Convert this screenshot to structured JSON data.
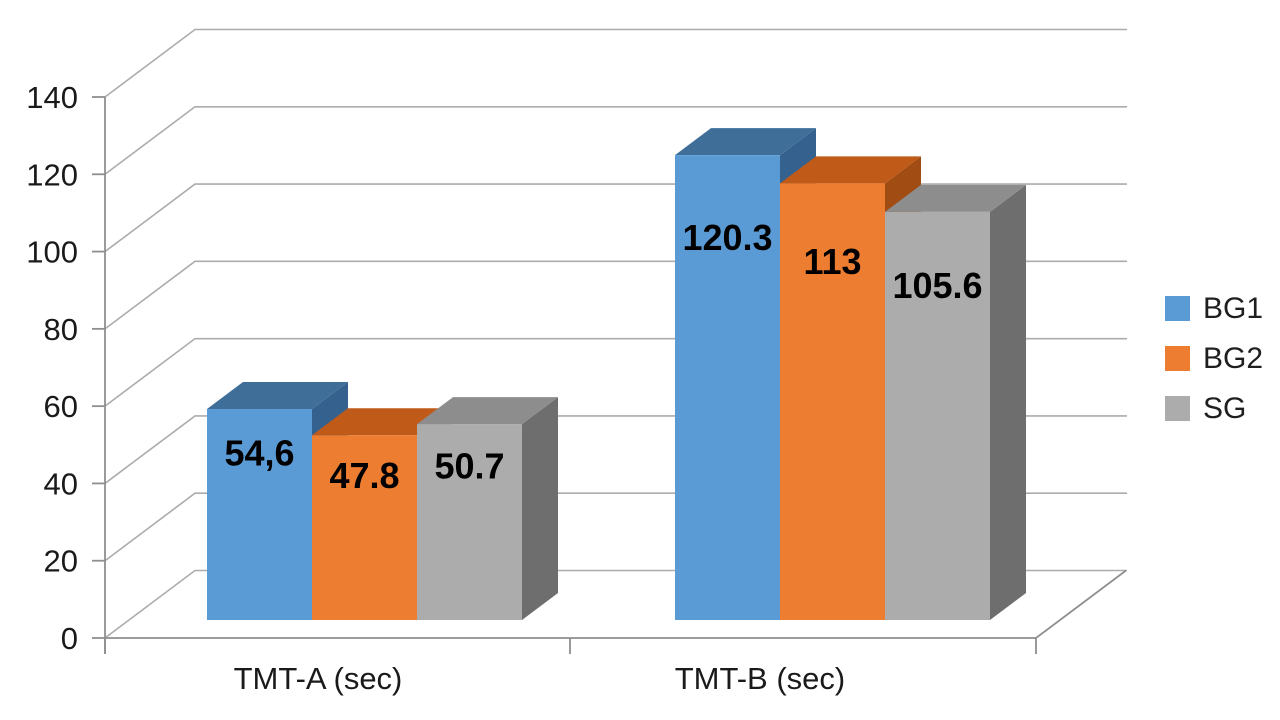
{
  "chart_data": {
    "type": "bar",
    "style": "3d-clustered-column",
    "title": "",
    "xlabel": "",
    "ylabel": "",
    "categories": [
      "TMT-A (sec)",
      "TMT-B (sec)"
    ],
    "series": [
      {
        "name": "BG1",
        "values": [
          54.6,
          120.3
        ],
        "value_labels": [
          "54,6",
          "120.3"
        ],
        "color": "#5B9BD5",
        "color_top": "#3F6E99",
        "color_side": "#35618F"
      },
      {
        "name": "BG2",
        "values": [
          47.8,
          113
        ],
        "value_labels": [
          "47.8",
          "113"
        ],
        "color": "#ED7D31",
        "color_top": "#C05A18",
        "color_side": "#A04C12"
      },
      {
        "name": "SG",
        "values": [
          50.7,
          105.6
        ],
        "value_labels": [
          "50.7",
          "105.6"
        ],
        "color": "#ACACAC",
        "color_top": "#8D8D8D",
        "color_side": "#6E6E6E"
      }
    ],
    "ylim": [
      0,
      140
    ],
    "yticks": [
      0,
      20,
      40,
      60,
      80,
      100,
      120,
      140
    ],
    "grid": true,
    "legend_position": "right"
  },
  "colors": {
    "background": "#FFFFFF",
    "gridline": "#ACACAC",
    "axis_line": "#8F8F8F",
    "tick_label": "#1A1A1A",
    "category_label": "#1A1A1A",
    "data_label": "#000000"
  }
}
